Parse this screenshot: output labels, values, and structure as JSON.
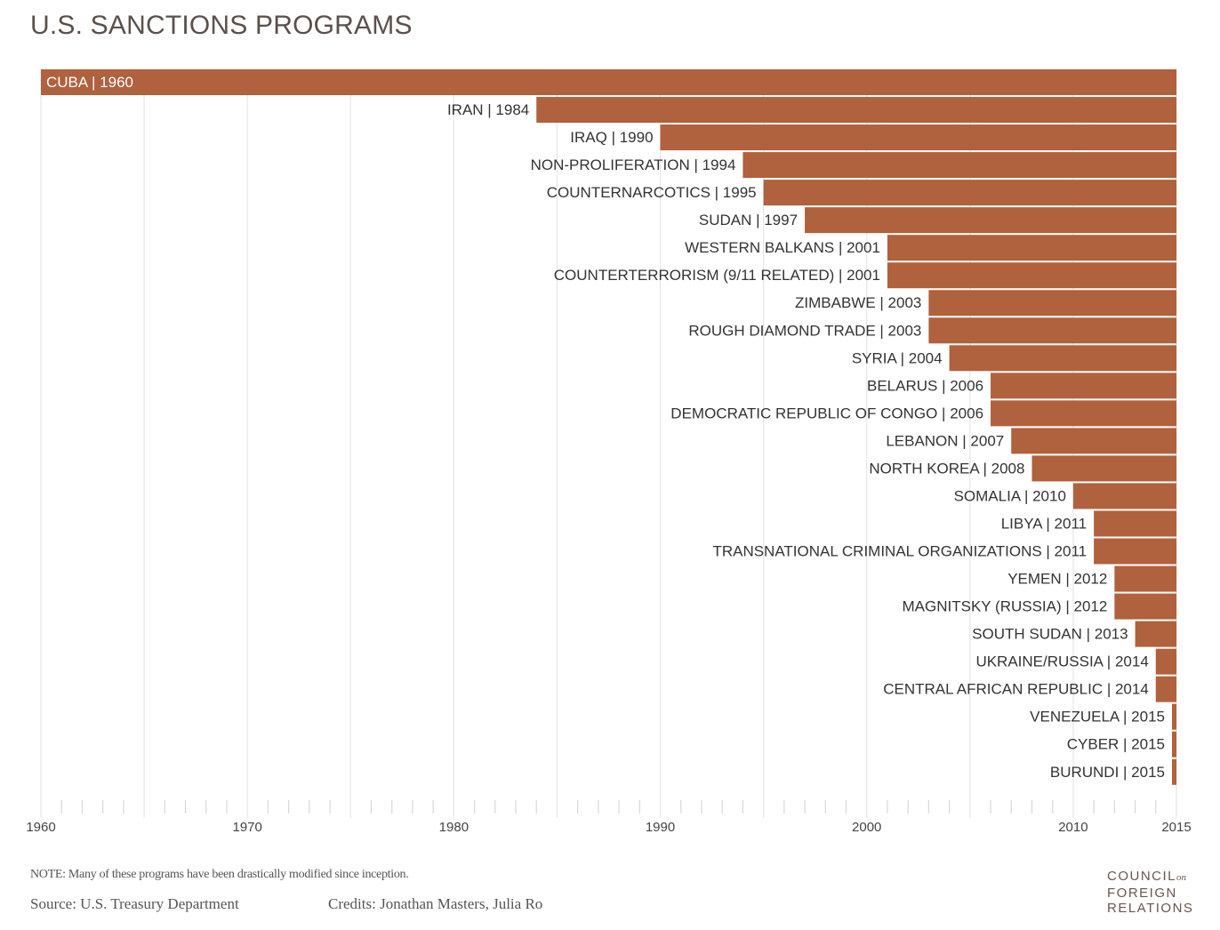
{
  "chart_data": {
    "type": "bar",
    "orientation": "horizontal",
    "title": "U.S. SANCTIONS PROGRAMS",
    "xlim": [
      1960,
      2015
    ],
    "x_ticks": [
      1960,
      1970,
      1980,
      1990,
      2000,
      2010,
      2015
    ],
    "grid": "vertical every 5 years, minor ticks every year",
    "bar_color": "#b0613d",
    "bar_end": 2015,
    "categories": [
      "CUBA",
      "IRAN",
      "IRAQ",
      "NON-PROLIFERATION",
      "COUNTERNARCOTICS",
      "SUDAN",
      "WESTERN BALKANS",
      "COUNTERTERRORISM (9/11 RELATED)",
      "ZIMBABWE",
      "ROUGH DIAMOND TRADE",
      "SYRIA",
      "BELARUS",
      "DEMOCRATIC REPUBLIC OF CONGO",
      "LEBANON",
      "NORTH KOREA",
      "SOMALIA",
      "LIBYA",
      "TRANSNATIONAL CRIMINAL ORGANIZATIONS",
      "YEMEN",
      "MAGNITSKY (RUSSIA)",
      "SOUTH SUDAN",
      "UKRAINE/RUSSIA",
      "CENTRAL AFRICAN REPUBLIC",
      "VENEZUELA",
      "CYBER",
      "BURUNDI"
    ],
    "values": [
      1960,
      1984,
      1990,
      1994,
      1995,
      1997,
      2001,
      2001,
      2003,
      2003,
      2004,
      2006,
      2006,
      2007,
      2008,
      2010,
      2011,
      2011,
      2012,
      2012,
      2013,
      2014,
      2014,
      2015,
      2015,
      2015
    ]
  },
  "footer": {
    "note": "NOTE: Many of these programs have been drastically modified since inception.",
    "source": "Source: U.S. Treasury Department",
    "credits": "Credits: Jonathan Masters, Julia Ro",
    "logo": "COUNCIL on FOREIGN RELATIONS"
  }
}
